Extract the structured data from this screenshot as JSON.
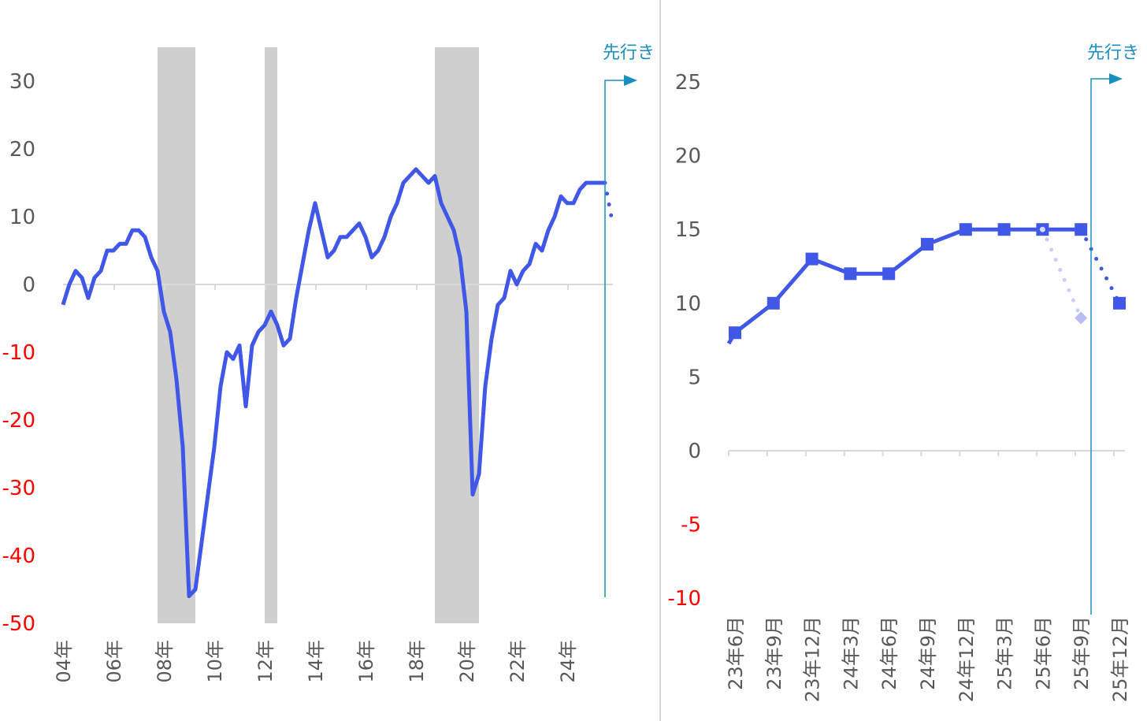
{
  "colors": {
    "line": "#4057e8",
    "forecast_prev": "#c9cdf7",
    "recession": "#d0cfd0",
    "axis": "#d9d9d9",
    "lead": "#1a8fbf",
    "negative": "#ff0000",
    "tick_text": "#595959"
  },
  "chart_data": [
    {
      "type": "line",
      "y_ticks": [
        30,
        20,
        10,
        0,
        -10,
        -20,
        -30,
        -40,
        -50
      ],
      "ylim": [
        -50,
        30
      ],
      "x_tick_labels": [
        "04年",
        "06年",
        "08年",
        "10年",
        "12年",
        "14年",
        "16年",
        "18年",
        "20年",
        "22年",
        "24年"
      ],
      "lead_label": "先行き",
      "x": [
        "04Q1",
        "04Q2",
        "04Q3",
        "04Q4",
        "05Q1",
        "05Q2",
        "05Q3",
        "05Q4",
        "06Q1",
        "06Q2",
        "06Q3",
        "06Q4",
        "07Q1",
        "07Q2",
        "07Q3",
        "07Q4",
        "08Q1",
        "08Q2",
        "08Q3",
        "08Q4",
        "09Q1",
        "09Q2",
        "09Q3",
        "09Q4",
        "10Q1",
        "10Q2",
        "10Q3",
        "10Q4",
        "11Q1",
        "11Q2",
        "11Q3",
        "11Q4",
        "12Q1",
        "12Q2",
        "12Q3",
        "12Q4",
        "13Q1",
        "13Q2",
        "13Q3",
        "13Q4",
        "14Q1",
        "14Q2",
        "14Q3",
        "14Q4",
        "15Q1",
        "15Q2",
        "15Q3",
        "15Q4",
        "16Q1",
        "16Q2",
        "16Q3",
        "16Q4",
        "17Q1",
        "17Q2",
        "17Q3",
        "17Q4",
        "18Q1",
        "18Q2",
        "18Q3",
        "18Q4",
        "19Q1",
        "19Q2",
        "19Q3",
        "19Q4",
        "20Q1",
        "20Q2",
        "20Q3",
        "20Q4",
        "21Q1",
        "21Q2",
        "21Q3",
        "21Q4",
        "22Q1",
        "22Q2",
        "22Q3",
        "22Q4",
        "23Q1",
        "23Q2",
        "23Q3",
        "23Q4",
        "24Q1",
        "24Q2",
        "24Q3",
        "24Q4",
        "25Q1",
        "25Q2",
        "25Q3"
      ],
      "values": [
        -3,
        0,
        2,
        1,
        -2,
        1,
        2,
        5,
        5,
        6,
        6,
        8,
        8,
        7,
        4,
        2,
        -4,
        -7,
        -14,
        -24,
        -46,
        -45,
        -38,
        -31,
        -24,
        -15,
        -10,
        -11,
        -9,
        -18,
        -9,
        -7,
        -6,
        -4,
        -6,
        -9,
        -8,
        -2,
        3,
        8,
        12,
        8,
        4,
        5,
        7,
        7,
        8,
        9,
        7,
        4,
        5,
        7,
        10,
        12,
        15,
        16,
        17,
        16,
        15,
        16,
        12,
        10,
        8,
        4,
        -4,
        -31,
        -28,
        -15,
        -8,
        -3,
        -2,
        2,
        0,
        2,
        3,
        6,
        5,
        8,
        10,
        13,
        12,
        12,
        14,
        15,
        15,
        15,
        15
      ],
      "forecast": {
        "x": "25Q4",
        "value": 10
      },
      "recession_bands": [
        [
          "07Q4",
          "09Q1"
        ],
        [
          "12Q1",
          "12Q2"
        ],
        [
          "18Q4",
          "20Q2"
        ]
      ]
    },
    {
      "type": "line",
      "y_ticks": [
        25,
        20,
        15,
        10,
        5,
        0,
        -5,
        -10
      ],
      "ylim": [
        -10,
        25
      ],
      "lead_label": "先行き",
      "categories": [
        "23年6月",
        "23年9月",
        "23年12月",
        "24年3月",
        "24年6月",
        "24年9月",
        "24年12月",
        "25年3月",
        "25年6月",
        "25年9月",
        "25年12月"
      ],
      "values": [
        8,
        10,
        13,
        12,
        12,
        14,
        15,
        15,
        15,
        15,
        null
      ],
      "forecast": {
        "from": "25年9月",
        "to": "25年12月",
        "value": 10
      },
      "previous_forecast": {
        "from": "25年6月",
        "to": "25年9月",
        "value": 9
      }
    }
  ]
}
